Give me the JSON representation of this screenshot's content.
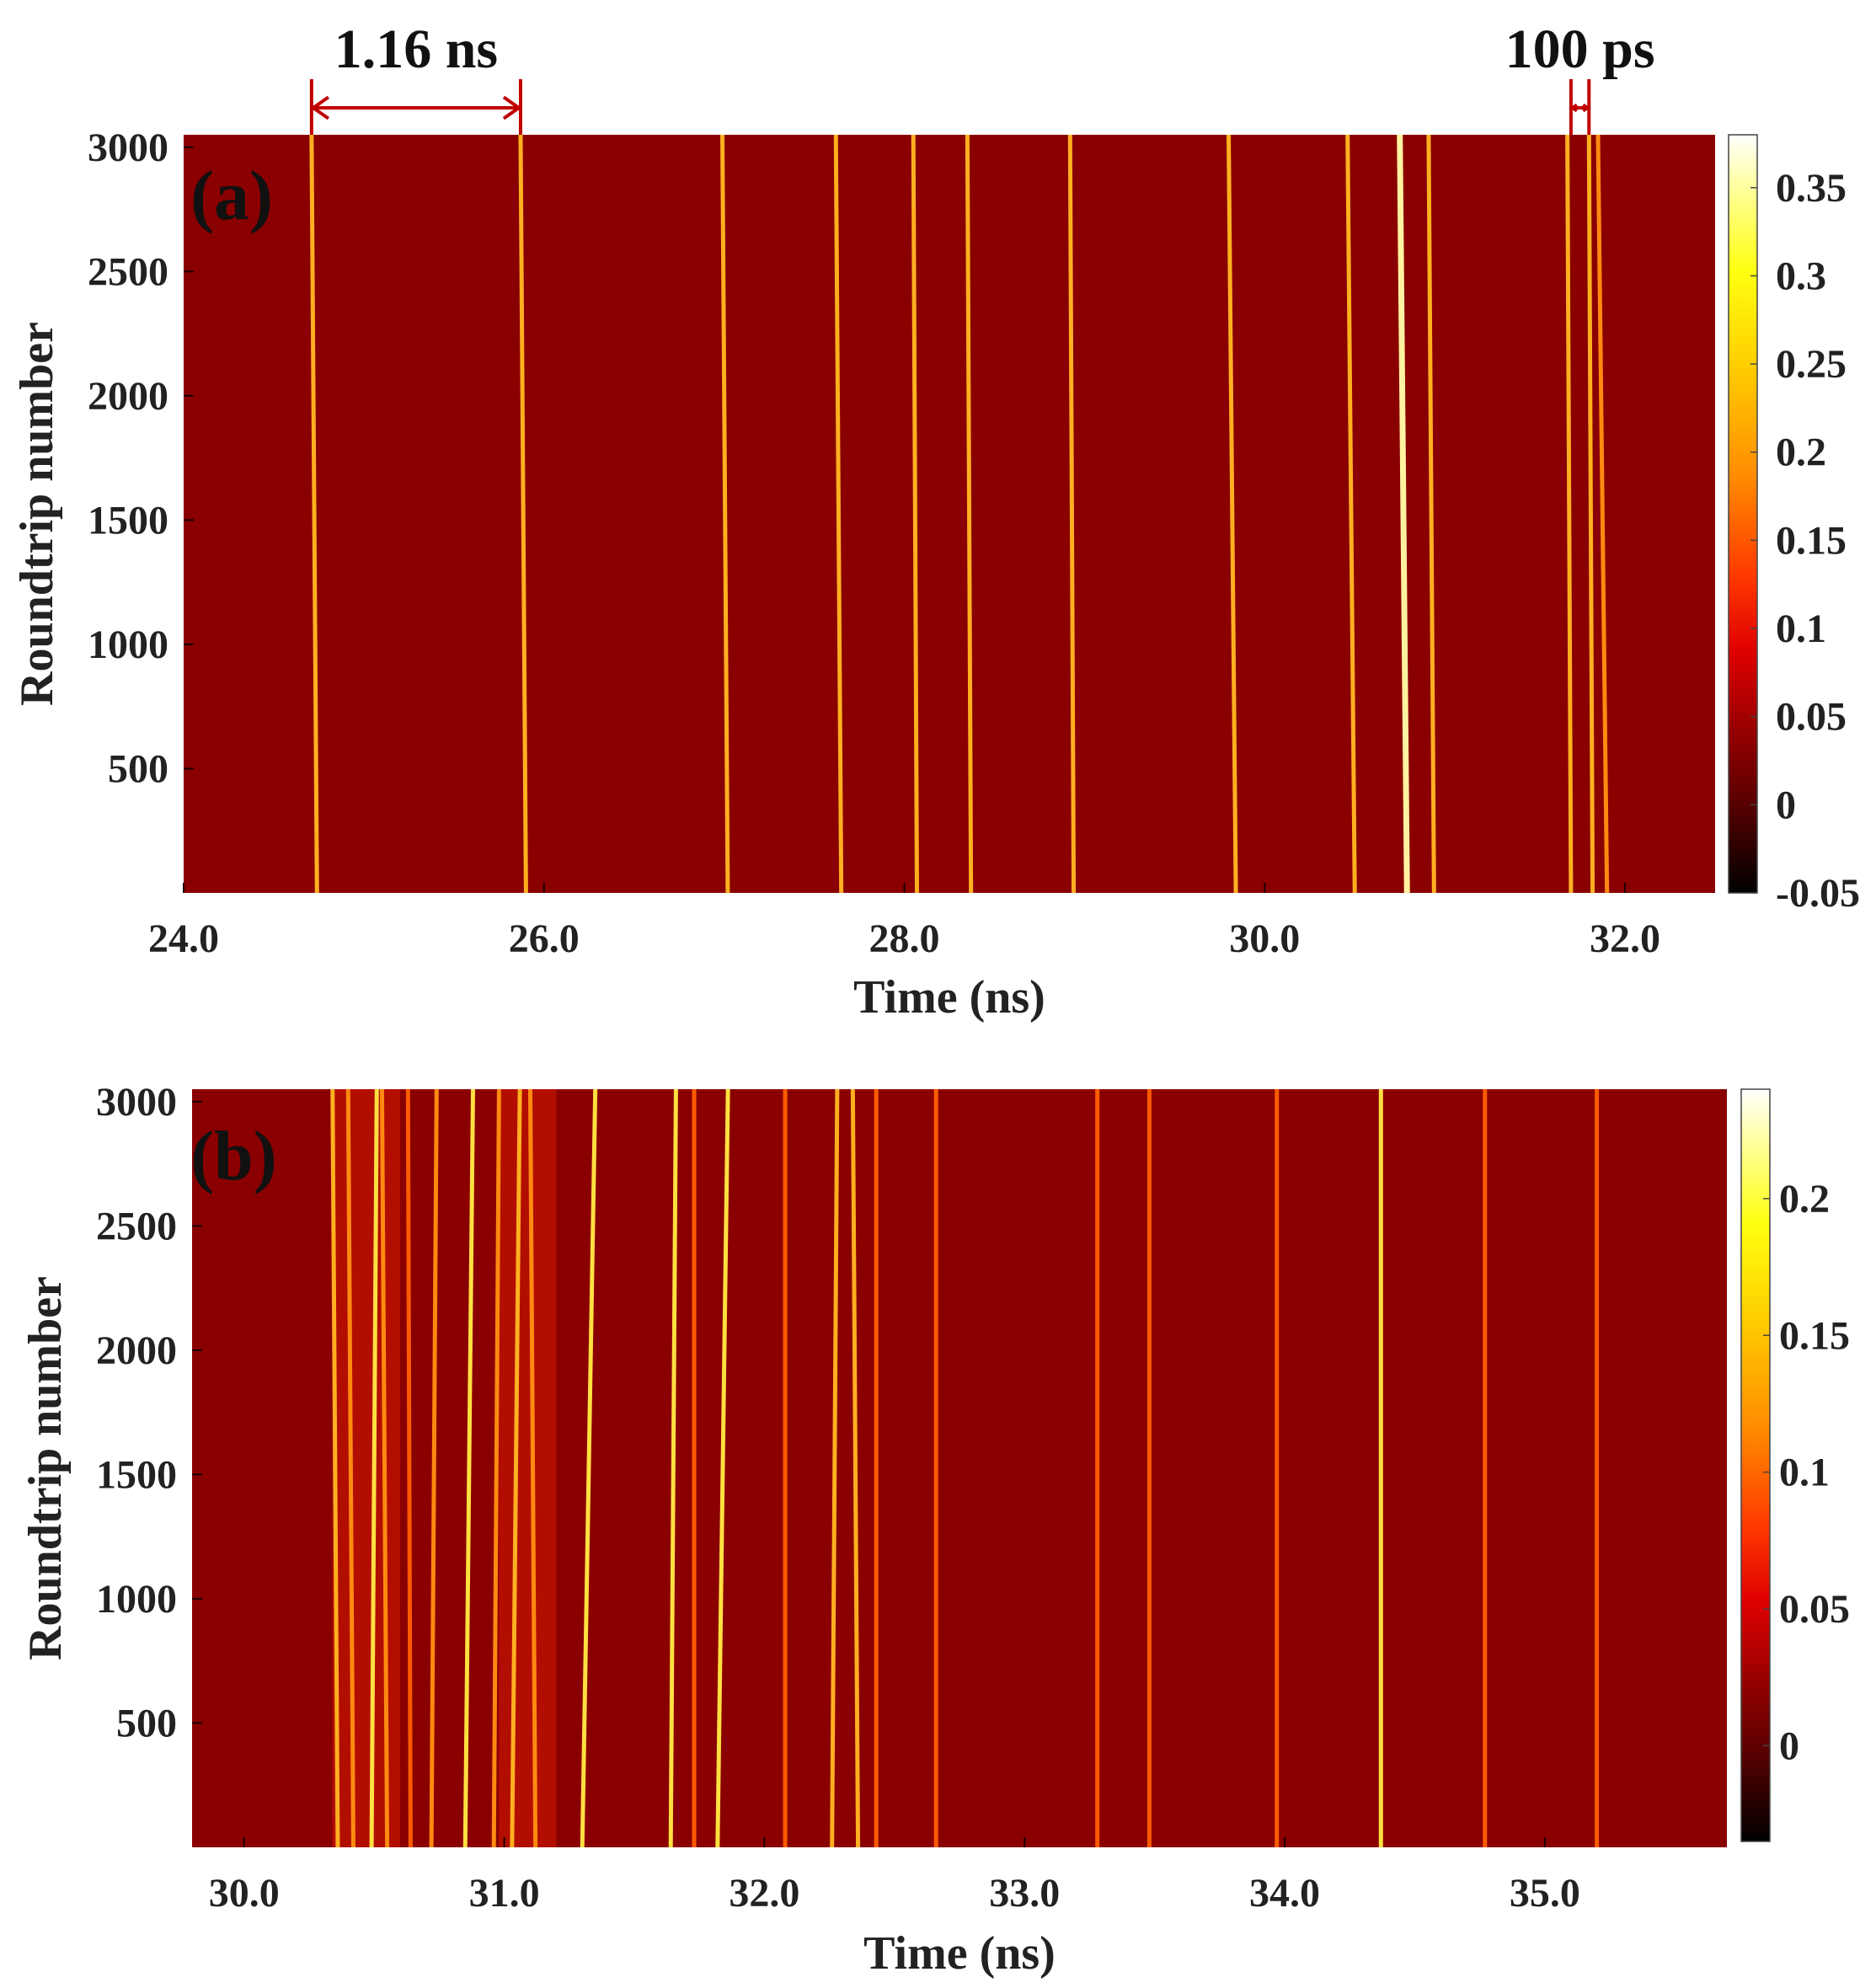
{
  "chart_data": [
    {
      "type": "heatmap",
      "panel_label": "(a)",
      "xlabel": "Time (ns)",
      "ylabel": "Roundtrip number",
      "xlim": [
        24.0,
        32.5
      ],
      "ylim": [
        0,
        3050
      ],
      "x_ticks": [
        24.0,
        26.0,
        28.0,
        30.0,
        32.0
      ],
      "x_tick_labels": [
        "24.0",
        "26.0",
        "28.0",
        "30.0",
        "32.0"
      ],
      "y_ticks": [
        500,
        1000,
        1500,
        2000,
        2500,
        3000
      ],
      "y_tick_labels": [
        "500",
        "1000",
        "1500",
        "2000",
        "2500",
        "3000"
      ],
      "colorbar": {
        "min": -0.05,
        "max": 0.38,
        "ticks": [
          -0.05,
          0,
          0.05,
          0.1,
          0.15,
          0.2,
          0.25,
          0.3,
          0.35
        ],
        "tick_labels": [
          "-0.05",
          "0",
          "0.05",
          "0.1",
          "0.15",
          "0.2",
          "0.25",
          "0.3",
          "0.35"
        ]
      },
      "background_value": 0.0,
      "traces": [
        {
          "t_start": 24.74,
          "t_end": 24.71,
          "value": 0.12
        },
        {
          "t_start": 25.9,
          "t_end": 25.87,
          "value": 0.12
        },
        {
          "t_start": 27.02,
          "t_end": 26.99,
          "value": 0.12
        },
        {
          "t_start": 27.65,
          "t_end": 27.62,
          "value": 0.12
        },
        {
          "t_start": 28.07,
          "t_end": 28.05,
          "value": 0.12
        },
        {
          "t_start": 28.37,
          "t_end": 28.35,
          "value": 0.12
        },
        {
          "t_start": 28.94,
          "t_end": 28.92,
          "value": 0.12
        },
        {
          "t_start": 29.84,
          "t_end": 29.8,
          "value": 0.12
        },
        {
          "t_start": 30.5,
          "t_end": 30.46,
          "value": 0.12
        },
        {
          "t_start": 30.79,
          "t_end": 30.75,
          "value": 0.3
        },
        {
          "t_start": 30.94,
          "t_end": 30.91,
          "value": 0.12
        },
        {
          "t_start": 31.7,
          "t_end": 31.68,
          "value": 0.12
        },
        {
          "t_start": 31.82,
          "t_end": 31.8,
          "value": 0.12
        },
        {
          "t_start": 31.9,
          "t_end": 31.85,
          "value": 0.1
        }
      ],
      "annotations": [
        {
          "text": "1.16 ns",
          "t_from": 24.71,
          "t_to": 25.87
        },
        {
          "text": "100 ps",
          "t_from": 31.7,
          "t_to": 31.8
        }
      ]
    },
    {
      "type": "heatmap",
      "panel_label": "(b)",
      "xlabel": "Time (ns)",
      "ylabel": "Roundtrip number",
      "xlim": [
        29.8,
        35.7
      ],
      "ylim": [
        0,
        3050
      ],
      "x_ticks": [
        30.0,
        31.0,
        32.0,
        33.0,
        34.0,
        35.0
      ],
      "x_tick_labels": [
        "30.0",
        "31.0",
        "32.0",
        "33.0",
        "34.0",
        "35.0"
      ],
      "y_ticks": [
        500,
        1000,
        1500,
        2000,
        2500,
        3000
      ],
      "y_tick_labels": [
        "500",
        "1000",
        "1500",
        "2000",
        "2500",
        "3000"
      ],
      "colorbar": {
        "min": -0.035,
        "max": 0.24,
        "ticks": [
          0,
          0.05,
          0.1,
          0.15,
          0.2
        ],
        "tick_labels": [
          "0",
          "0.05",
          "0.1",
          "0.15",
          "0.2"
        ]
      },
      "background_value": 0.0,
      "bands": [
        {
          "t_from": 30.34,
          "t_to": 30.6,
          "value": 0.06
        },
        {
          "t_from": 30.98,
          "t_to": 31.2,
          "value": 0.06
        }
      ],
      "traces": [
        {
          "t_start": 30.36,
          "t_end": 30.34,
          "value": 0.14
        },
        {
          "t_start": 30.42,
          "t_end": 30.4,
          "value": 0.1
        },
        {
          "t_start": 30.49,
          "t_end": 30.51,
          "value": 0.16
        },
        {
          "t_start": 30.55,
          "t_end": 30.53,
          "value": 0.1
        },
        {
          "t_start": 30.64,
          "t_end": 30.63,
          "value": 0.08
        },
        {
          "t_start": 30.72,
          "t_end": 30.74,
          "value": 0.1
        },
        {
          "t_start": 30.85,
          "t_end": 30.88,
          "value": 0.16
        },
        {
          "t_start": 30.96,
          "t_end": 30.98,
          "value": 0.09
        },
        {
          "t_start": 31.03,
          "t_end": 31.06,
          "value": 0.14
        },
        {
          "t_start": 31.12,
          "t_end": 31.1,
          "value": 0.1
        },
        {
          "t_start": 31.3,
          "t_end": 31.35,
          "value": 0.16
        },
        {
          "t_start": 31.64,
          "t_end": 31.66,
          "value": 0.16
        },
        {
          "t_start": 31.73,
          "t_end": 31.73,
          "value": 0.08
        },
        {
          "t_start": 31.82,
          "t_end": 31.86,
          "value": 0.16
        },
        {
          "t_start": 32.08,
          "t_end": 32.08,
          "value": 0.07
        },
        {
          "t_start": 32.26,
          "t_end": 32.28,
          "value": 0.14
        },
        {
          "t_start": 32.36,
          "t_end": 32.34,
          "value": 0.12
        },
        {
          "t_start": 32.43,
          "t_end": 32.43,
          "value": 0.07
        },
        {
          "t_start": 32.66,
          "t_end": 32.66,
          "value": 0.07
        },
        {
          "t_start": 33.28,
          "t_end": 33.28,
          "value": 0.07
        },
        {
          "t_start": 33.48,
          "t_end": 33.48,
          "value": 0.07
        },
        {
          "t_start": 33.97,
          "t_end": 33.97,
          "value": 0.07
        },
        {
          "t_start": 34.37,
          "t_end": 34.37,
          "value": 0.15
        },
        {
          "t_start": 34.77,
          "t_end": 34.77,
          "value": 0.07
        },
        {
          "t_start": 35.2,
          "t_end": 35.2,
          "value": 0.07
        }
      ]
    }
  ]
}
